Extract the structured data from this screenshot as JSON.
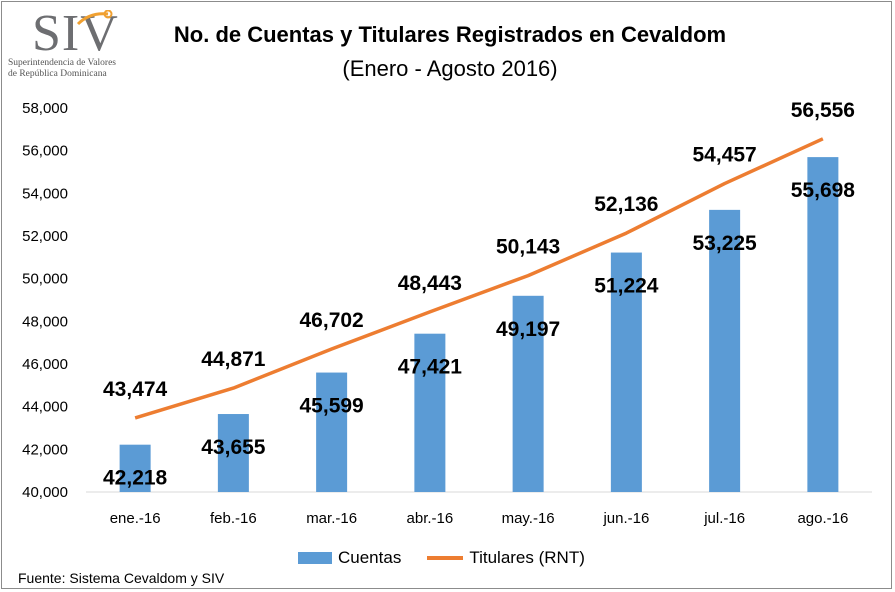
{
  "logo": {
    "mark": "SIV",
    "line1": "Superintendencia de Valores",
    "line2": "de República Dominicana"
  },
  "chart_data": {
    "type": "bar",
    "title": "No. de Cuentas y Titulares Registrados en Cevaldom",
    "subtitle": "(Enero - Agosto 2016)",
    "categories": [
      "ene.-16",
      "feb.-16",
      "mar.-16",
      "abr.-16",
      "may.-16",
      "jun.-16",
      "jul.-16",
      "ago.-16"
    ],
    "series": [
      {
        "name": "Cuentas",
        "type": "bar",
        "color": "#5b9bd5",
        "values": [
          42218,
          43655,
          45599,
          47421,
          49197,
          51224,
          53225,
          55698
        ],
        "labels": [
          "42,218",
          "43,655",
          "45,599",
          "47,421",
          "49,197",
          "51,224",
          "53,225",
          "55,698"
        ]
      },
      {
        "name": "Titulares (RNT)",
        "type": "line",
        "color": "#ed7d31",
        "values": [
          43474,
          44871,
          46702,
          48443,
          50143,
          52136,
          54457,
          56556
        ],
        "labels": [
          "43,474",
          "44,871",
          "46,702",
          "48,443",
          "50,143",
          "52,136",
          "54,457",
          "56,556"
        ]
      }
    ],
    "ylim": [
      40000,
      58000
    ],
    "yticks": [
      "40,000",
      "42,000",
      "44,000",
      "46,000",
      "48,000",
      "50,000",
      "52,000",
      "54,000",
      "56,000",
      "58,000"
    ],
    "ytick_values": [
      40000,
      42000,
      44000,
      46000,
      48000,
      50000,
      52000,
      54000,
      56000,
      58000
    ],
    "grid": false,
    "legend": "bottom"
  },
  "footer": {
    "source": "Fuente: Sistema Cevaldom y SIV"
  }
}
